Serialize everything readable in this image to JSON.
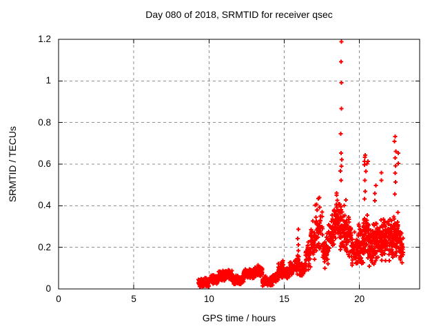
{
  "page": {
    "background": "#ffffff"
  },
  "chart_data": {
    "type": "scatter",
    "title": "Day 080 of 2018, SRMTID for receiver qsec",
    "xlabel": "GPS time / hours",
    "ylabel": "SRMTID / TECUs",
    "xlim": [
      0,
      24
    ],
    "ylim": [
      0,
      1.2
    ],
    "xticks": [
      0,
      5,
      10,
      15,
      20
    ],
    "xtick_labels": [
      "0",
      "5",
      "10",
      "15",
      "20"
    ],
    "yticks": [
      0,
      0.2,
      0.4,
      0.6,
      0.8,
      1,
      1.2
    ],
    "ytick_labels": [
      "0",
      "0.2",
      "0.4",
      "0.6",
      "0.8",
      "1",
      "1.2"
    ],
    "grid": true,
    "legend": "none",
    "marker": "plus",
    "marker_color": "#ff0000",
    "grid_color": "#8c8c8c",
    "border_color": "#000000",
    "x_data_range": [
      9.3,
      22.92
    ],
    "y_data_max": 1.19,
    "seed": 7,
    "scatter_band_segments": [
      {
        "x0": 9.3,
        "x1": 9.6,
        "count": 45,
        "ymin": 0.006,
        "ymax": 0.05
      },
      {
        "x0": 9.6,
        "x1": 10.0,
        "count": 60,
        "ymin": 0.01,
        "ymax": 0.055
      },
      {
        "x0": 10.0,
        "x1": 10.6,
        "count": 80,
        "ymin": 0.02,
        "ymax": 0.068
      },
      {
        "x0": 10.6,
        "x1": 11.1,
        "count": 70,
        "ymin": 0.035,
        "ymax": 0.09
      },
      {
        "x0": 11.1,
        "x1": 11.55,
        "count": 65,
        "ymin": 0.04,
        "ymax": 0.095
      },
      {
        "x0": 11.55,
        "x1": 12.3,
        "count": 95,
        "ymin": 0.02,
        "ymax": 0.068
      },
      {
        "x0": 12.3,
        "x1": 13.0,
        "count": 95,
        "ymin": 0.045,
        "ymax": 0.105
      },
      {
        "x0": 13.0,
        "x1": 13.55,
        "count": 75,
        "ymin": 0.055,
        "ymax": 0.12
      },
      {
        "x0": 13.55,
        "x1": 14.25,
        "count": 85,
        "ymin": 0.012,
        "ymax": 0.062
      },
      {
        "x0": 14.25,
        "x1": 14.6,
        "count": 45,
        "ymin": 0.03,
        "ymax": 0.08
      },
      {
        "x0": 14.6,
        "x1": 14.95,
        "count": 45,
        "ymin": 0.05,
        "ymax": 0.14
      },
      {
        "x0": 14.95,
        "x1": 15.35,
        "count": 50,
        "ymin": 0.05,
        "ymax": 0.11
      },
      {
        "x0": 15.35,
        "x1": 15.7,
        "count": 45,
        "ymin": 0.06,
        "ymax": 0.135
      },
      {
        "x0": 15.7,
        "x1": 16.0,
        "count": 40,
        "ymin": 0.07,
        "ymax": 0.175
      },
      {
        "x0": 16.0,
        "x1": 16.4,
        "count": 45,
        "ymin": 0.05,
        "ymax": 0.135
      },
      {
        "x0": 16.4,
        "x1": 16.75,
        "count": 40,
        "ymin": 0.09,
        "ymax": 0.24
      },
      {
        "x0": 16.75,
        "x1": 17.05,
        "count": 35,
        "ymin": 0.13,
        "ymax": 0.3
      },
      {
        "x0": 17.05,
        "x1": 17.55,
        "count": 50,
        "ymin": 0.16,
        "ymax": 0.42
      },
      {
        "x0": 17.55,
        "x1": 17.95,
        "count": 45,
        "ymin": 0.09,
        "ymax": 0.29
      },
      {
        "x0": 17.95,
        "x1": 18.3,
        "count": 45,
        "ymin": 0.16,
        "ymax": 0.37
      },
      {
        "x0": 18.3,
        "x1": 18.7,
        "count": 55,
        "ymin": 0.22,
        "ymax": 0.45
      },
      {
        "x0": 18.7,
        "x1": 19.05,
        "count": 55,
        "ymin": 0.17,
        "ymax": 0.41
      },
      {
        "x0": 19.05,
        "x1": 19.45,
        "count": 50,
        "ymin": 0.14,
        "ymax": 0.36
      },
      {
        "x0": 19.45,
        "x1": 19.85,
        "count": 50,
        "ymin": 0.1,
        "ymax": 0.29
      },
      {
        "x0": 19.85,
        "x1": 20.25,
        "count": 55,
        "ymin": 0.1,
        "ymax": 0.33
      },
      {
        "x0": 20.25,
        "x1": 20.65,
        "count": 55,
        "ymin": 0.13,
        "ymax": 0.38
      },
      {
        "x0": 20.65,
        "x1": 21.05,
        "count": 55,
        "ymin": 0.1,
        "ymax": 0.33
      },
      {
        "x0": 21.05,
        "x1": 21.45,
        "count": 55,
        "ymin": 0.12,
        "ymax": 0.35
      },
      {
        "x0": 21.45,
        "x1": 21.85,
        "count": 55,
        "ymin": 0.12,
        "ymax": 0.35
      },
      {
        "x0": 21.85,
        "x1": 22.25,
        "count": 55,
        "ymin": 0.13,
        "ymax": 0.36
      },
      {
        "x0": 22.25,
        "x1": 22.6,
        "count": 55,
        "ymin": 0.13,
        "ymax": 0.38
      },
      {
        "x0": 22.6,
        "x1": 22.92,
        "count": 45,
        "ymin": 0.1,
        "ymax": 0.3
      }
    ],
    "spike_columns": [
      {
        "x": 15.9,
        "values": [
          0.16,
          0.185,
          0.21,
          0.245,
          0.285
        ]
      },
      {
        "x": 16.92,
        "values": [
          0.325
        ]
      },
      {
        "x": 17.3,
        "values": [
          0.43,
          0.44
        ]
      },
      {
        "x": 18.5,
        "values": [
          0.455,
          0.46
        ]
      },
      {
        "x": 18.78,
        "values": [
          1.19,
          1.09,
          0.99,
          0.87,
          0.745,
          0.655,
          0.62,
          0.59,
          0.565,
          0.52
        ]
      },
      {
        "x": 19.12,
        "values": [
          0.43
        ]
      },
      {
        "x": 20.38,
        "values": [
          0.64,
          0.63,
          0.615,
          0.6,
          0.565,
          0.52,
          0.47,
          0.43
        ]
      },
      {
        "x": 20.52,
        "values": [
          0.615,
          0.6
        ]
      },
      {
        "x": 21.07,
        "values": [
          0.42,
          0.46,
          0.5
        ]
      },
      {
        "x": 21.47,
        "values": [
          0.52,
          0.555
        ]
      },
      {
        "x": 22.37,
        "values": [
          0.73,
          0.71,
          0.665,
          0.63,
          0.595,
          0.555,
          0.51,
          0.455
        ]
      },
      {
        "x": 22.55,
        "values": [
          0.65,
          0.6
        ]
      }
    ]
  }
}
